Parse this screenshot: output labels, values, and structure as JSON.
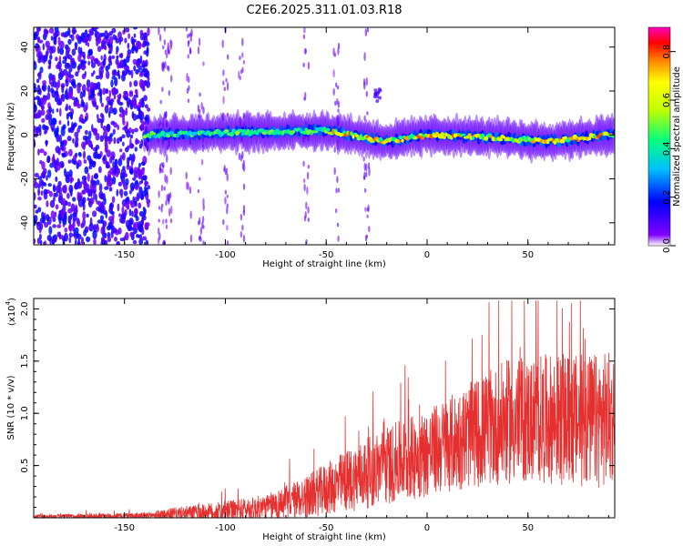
{
  "title": "C2E6.2025.311.01.03.R18",
  "chart_data": [
    {
      "type": "heatmap",
      "title": "C2E6.2025.311.01.03.R18",
      "xlabel": "Height of straight line (km)",
      "ylabel": "Frequency (Hz)",
      "xlim": [
        -195,
        93
      ],
      "ylim": [
        -50,
        49
      ],
      "xticks": [
        "-150",
        "-100",
        "-50",
        "0",
        "50"
      ],
      "yticks": [
        "40",
        "20",
        "0",
        "-20",
        "-40"
      ],
      "colorbar": {
        "label": "Normalized spectral amplitude",
        "range": [
          0.0,
          0.9
        ],
        "ticks": [
          "0.0",
          "0.2",
          "0.4",
          "0.6",
          "0.8"
        ],
        "colormap": "rainbow (purple to red/magenta)"
      },
      "description_points": {
        "broadband_noise_region_km": [
          -195,
          -140
        ],
        "ridge_center_hz": [
          {
            "x": -140,
            "y": 0
          },
          {
            "x": -100,
            "y": 1
          },
          {
            "x": -50,
            "y": 2
          },
          {
            "x": -20,
            "y": -3
          },
          {
            "x": 0,
            "y": 0
          },
          {
            "x": 30,
            "y": -1
          },
          {
            "x": 60,
            "y": -3
          },
          {
            "x": 90,
            "y": 0
          }
        ]
      }
    },
    {
      "type": "line",
      "xlabel": "Height of straight line (km)",
      "ylabel": "SNR (10 * v/v)",
      "yscale_label": "(x10",
      "yscale_exp": "4",
      "xlim": [
        -195,
        93
      ],
      "ylim": [
        0,
        2.1
      ],
      "xticks": [
        "-150",
        "-100",
        "-50",
        "0",
        "50"
      ],
      "yticks": [
        "2.0",
        "1.5",
        "1.0",
        "0.5"
      ],
      "color": "#e53030",
      "envelope": [
        {
          "x": -195,
          "mean": 0.01,
          "amp": 0.02
        },
        {
          "x": -140,
          "mean": 0.02,
          "amp": 0.03
        },
        {
          "x": -125,
          "mean": 0.04,
          "amp": 0.06
        },
        {
          "x": -100,
          "mean": 0.06,
          "amp": 0.1
        },
        {
          "x": -80,
          "mean": 0.1,
          "amp": 0.12
        },
        {
          "x": -60,
          "mean": 0.2,
          "amp": 0.2
        },
        {
          "x": -40,
          "mean": 0.35,
          "amp": 0.3
        },
        {
          "x": -20,
          "mean": 0.5,
          "amp": 0.38
        },
        {
          "x": 0,
          "mean": 0.62,
          "amp": 0.42
        },
        {
          "x": 20,
          "mean": 0.78,
          "amp": 0.5
        },
        {
          "x": 40,
          "mean": 0.92,
          "amp": 0.6
        },
        {
          "x": 60,
          "mean": 0.95,
          "amp": 0.62
        },
        {
          "x": 80,
          "mean": 0.92,
          "amp": 0.65
        },
        {
          "x": 93,
          "mean": 0.95,
          "amp": 0.65
        }
      ]
    }
  ]
}
